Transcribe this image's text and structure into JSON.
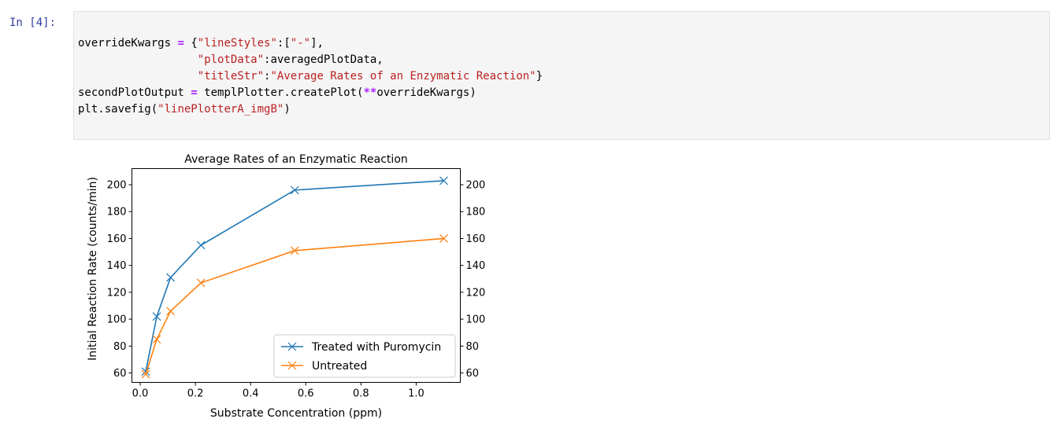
{
  "cell": {
    "prompt": "In [4]:",
    "code": {
      "line1": {
        "var": "overrideKwargs",
        "op": "=",
        "open": "{",
        "k1": "\"lineStyles\"",
        "colon1": ":[",
        "v1": "\"-\"",
        "close1": "],"
      },
      "line2": {
        "indent": "                  ",
        "k2": "\"plotData\"",
        "rest2": ":averagedPlotData,"
      },
      "line3": {
        "indent": "                  ",
        "k3": "\"titleStr\"",
        "colon3": ":",
        "v3": "\"Average Rates of an Enzymatic Reaction\"",
        "close3": "}"
      },
      "line4": {
        "var": "secondPlotOutput",
        "op": "=",
        "call": "templPlotter.createPlot(",
        "stars": "**",
        "arg": "overrideKwargs",
        "close": ")"
      },
      "line5": {
        "call": "plt.savefig(",
        "arg": "\"linePlotterA_imgB\"",
        "close": ")"
      }
    }
  },
  "chart_data": {
    "type": "line",
    "title": "Average Rates of an Enzymatic Reaction",
    "xlabel": "Substrate Concentration (ppm)",
    "ylabel": "Initial Reaction Rate (counts/min)",
    "xlim": [
      -0.03,
      1.16
    ],
    "ylim": [
      53,
      212
    ],
    "xticks": [
      0.0,
      0.2,
      0.4,
      0.6,
      0.8,
      1.0
    ],
    "xtick_labels": [
      "0.0",
      "0.2",
      "0.4",
      "0.6",
      "0.8",
      "1.0"
    ],
    "yticks": [
      60,
      80,
      100,
      120,
      140,
      160,
      180,
      200
    ],
    "ytick_labels": [
      "60",
      "80",
      "100",
      "120",
      "140",
      "160",
      "180",
      "200"
    ],
    "right_axis_ticks": true,
    "legend_position": "lower-right",
    "marker": "x",
    "series": [
      {
        "name": "Treated with Puromycin",
        "color": "#1f77b4",
        "x": [
          0.02,
          0.06,
          0.11,
          0.22,
          0.56,
          1.1
        ],
        "y": [
          61,
          102,
          131,
          155,
          196,
          203
        ]
      },
      {
        "name": "Untreated",
        "color": "#ff7f0e",
        "x": [
          0.02,
          0.06,
          0.11,
          0.22,
          0.56,
          1.1
        ],
        "y": [
          59,
          85,
          106,
          127,
          151,
          160
        ]
      }
    ]
  }
}
